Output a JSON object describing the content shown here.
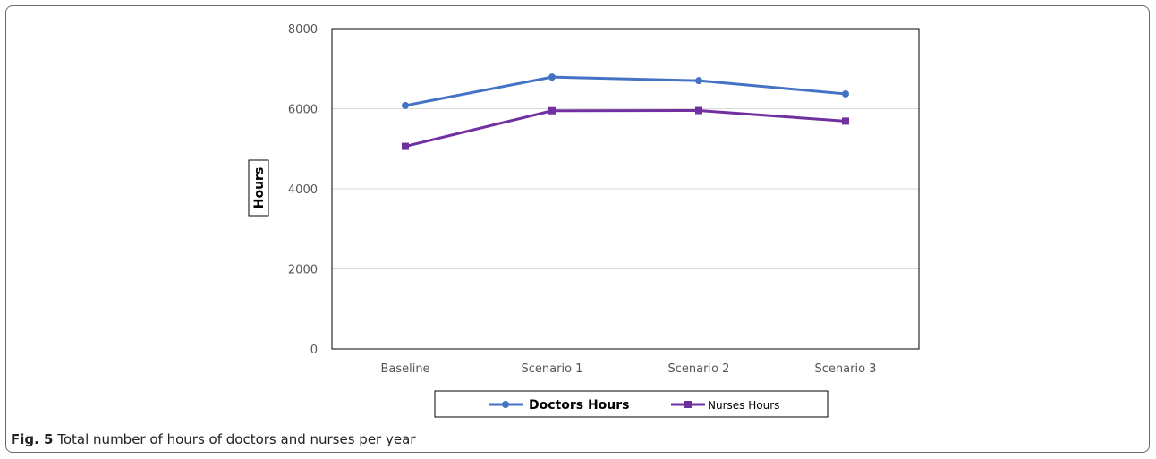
{
  "chart_data": {
    "type": "line",
    "categories": [
      "Baseline",
      "Scenario 1",
      "Scenario 2",
      "Scenario 3"
    ],
    "series": [
      {
        "name": "Doctors Hours",
        "values": [
          6080,
          6790,
          6700,
          6370
        ],
        "color": "#4472C4",
        "marker": "circle"
      },
      {
        "name": "Nurses Hours",
        "values": [
          5060,
          5950,
          5955,
          5690
        ],
        "color": "#7030A0",
        "marker": "square"
      }
    ],
    "ylabel": "Hours",
    "ylim": [
      0,
      8000
    ],
    "yticks": [
      "0",
      "2000",
      "4000",
      "6000",
      "8000"
    ],
    "grid": true,
    "legend_position": "bottom"
  },
  "caption": {
    "label": "Fig. 5",
    "text": " Total number of hours of doctors and nurses per year"
  }
}
